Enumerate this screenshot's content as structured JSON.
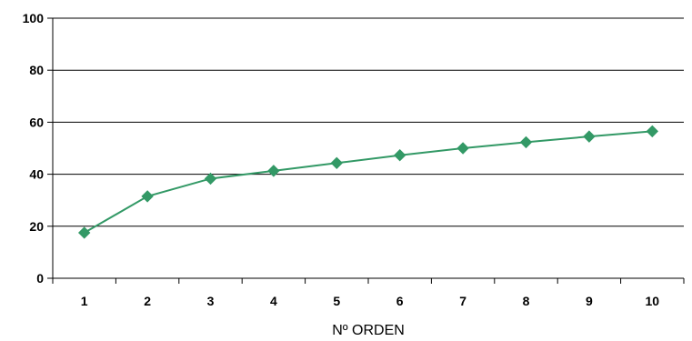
{
  "chart_data": {
    "type": "line",
    "title": "",
    "xlabel": "Nº ORDEN",
    "ylabel": "",
    "categories": [
      "1",
      "2",
      "3",
      "4",
      "5",
      "6",
      "7",
      "8",
      "9",
      "10"
    ],
    "series": [
      {
        "values": [
          17.5,
          31.5,
          38.3,
          41.3,
          44.3,
          47.3,
          50.0,
          52.3,
          54.5,
          56.5
        ]
      }
    ],
    "ylim": [
      0,
      100
    ],
    "yticks": [
      "0",
      "20",
      "40",
      "60",
      "80",
      "100"
    ],
    "grid": "horizontal",
    "legend": "none",
    "colors": {
      "series": "#339966",
      "axis": "#000000",
      "grid": "#000000"
    }
  }
}
